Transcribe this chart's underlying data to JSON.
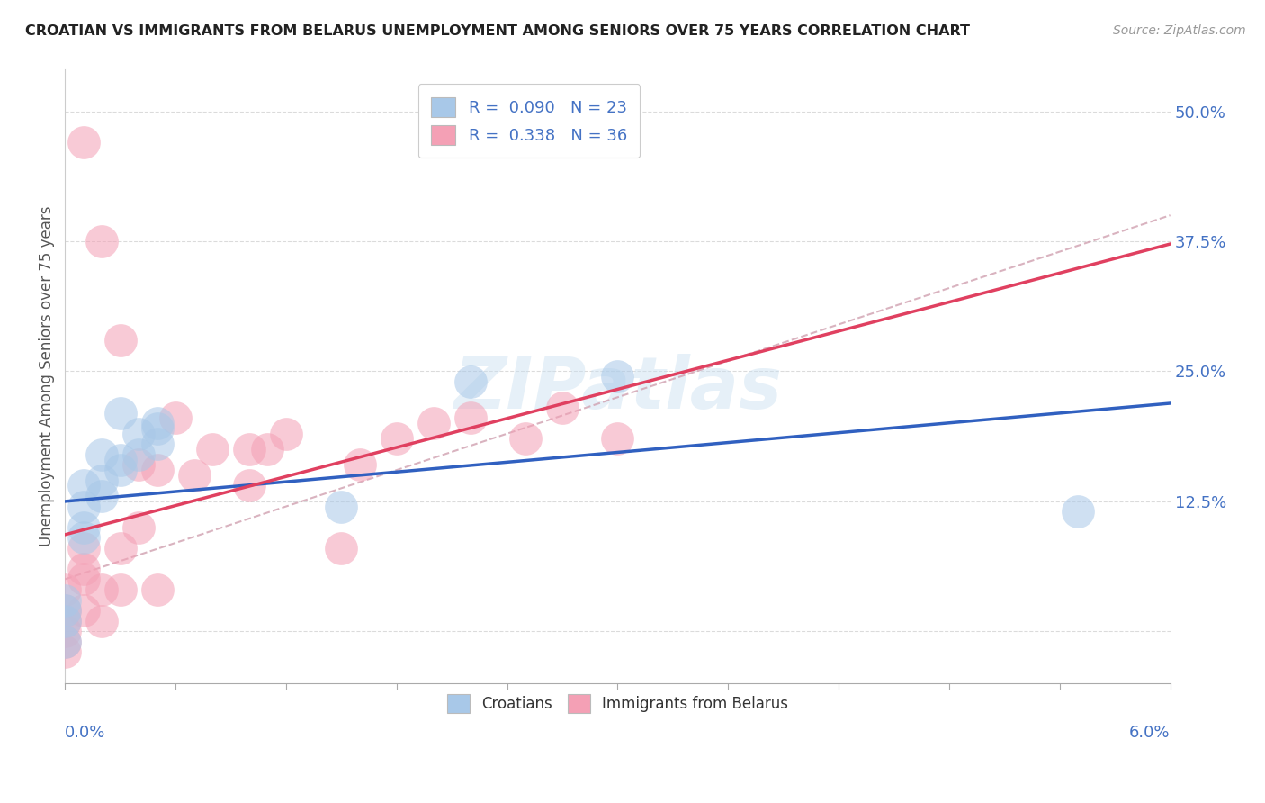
{
  "title": "CROATIAN VS IMMIGRANTS FROM BELARUS UNEMPLOYMENT AMONG SENIORS OVER 75 YEARS CORRELATION CHART",
  "source": "Source: ZipAtlas.com",
  "ylabel": "Unemployment Among Seniors over 75 years",
  "xlim": [
    0.0,
    0.06
  ],
  "ylim": [
    -0.05,
    0.54
  ],
  "watermark": "ZIPatlas",
  "legend_r1": "0.090",
  "legend_n1": "23",
  "legend_r2": "0.338",
  "legend_n2": "36",
  "color_blue": "#a8c8e8",
  "color_pink": "#f4a0b5",
  "line_blue": "#3060c0",
  "line_pink": "#e04060",
  "line_dashed_color": "#d0a0b0",
  "text_blue": "#4472c4",
  "yticks": [
    0.0,
    0.125,
    0.25,
    0.375,
    0.5
  ],
  "ytick_labels": [
    "",
    "12.5%",
    "25.0%",
    "37.5%",
    "50.0%"
  ],
  "xtick_vals": [
    0.0,
    0.006,
    0.012,
    0.018,
    0.024,
    0.03,
    0.036,
    0.042,
    0.048,
    0.054,
    0.06
  ],
  "croatians_x": [
    0.0,
    0.0,
    0.0,
    0.0,
    0.001,
    0.001,
    0.001,
    0.001,
    0.002,
    0.002,
    0.002,
    0.003,
    0.003,
    0.003,
    0.004,
    0.004,
    0.005,
    0.005,
    0.005,
    0.015,
    0.022,
    0.03,
    0.055
  ],
  "croatians_y": [
    -0.01,
    0.01,
    0.02,
    0.03,
    0.09,
    0.1,
    0.12,
    0.14,
    0.13,
    0.145,
    0.17,
    0.155,
    0.165,
    0.21,
    0.17,
    0.19,
    0.18,
    0.195,
    0.2,
    0.12,
    0.24,
    0.245,
    0.115
  ],
  "belarus_x": [
    0.0,
    0.0,
    0.0,
    0.0,
    0.0,
    0.0,
    0.001,
    0.001,
    0.001,
    0.001,
    0.001,
    0.002,
    0.002,
    0.002,
    0.003,
    0.003,
    0.003,
    0.004,
    0.004,
    0.005,
    0.005,
    0.006,
    0.007,
    0.008,
    0.01,
    0.01,
    0.011,
    0.012,
    0.015,
    0.016,
    0.018,
    0.02,
    0.022,
    0.025,
    0.027,
    0.03
  ],
  "belarus_y": [
    -0.02,
    -0.01,
    0.0,
    0.01,
    0.02,
    0.04,
    0.02,
    0.05,
    0.06,
    0.08,
    0.47,
    0.01,
    0.04,
    0.375,
    0.04,
    0.08,
    0.28,
    0.1,
    0.16,
    0.04,
    0.155,
    0.205,
    0.15,
    0.175,
    0.14,
    0.175,
    0.175,
    0.19,
    0.08,
    0.16,
    0.185,
    0.2,
    0.205,
    0.185,
    0.215,
    0.185
  ]
}
